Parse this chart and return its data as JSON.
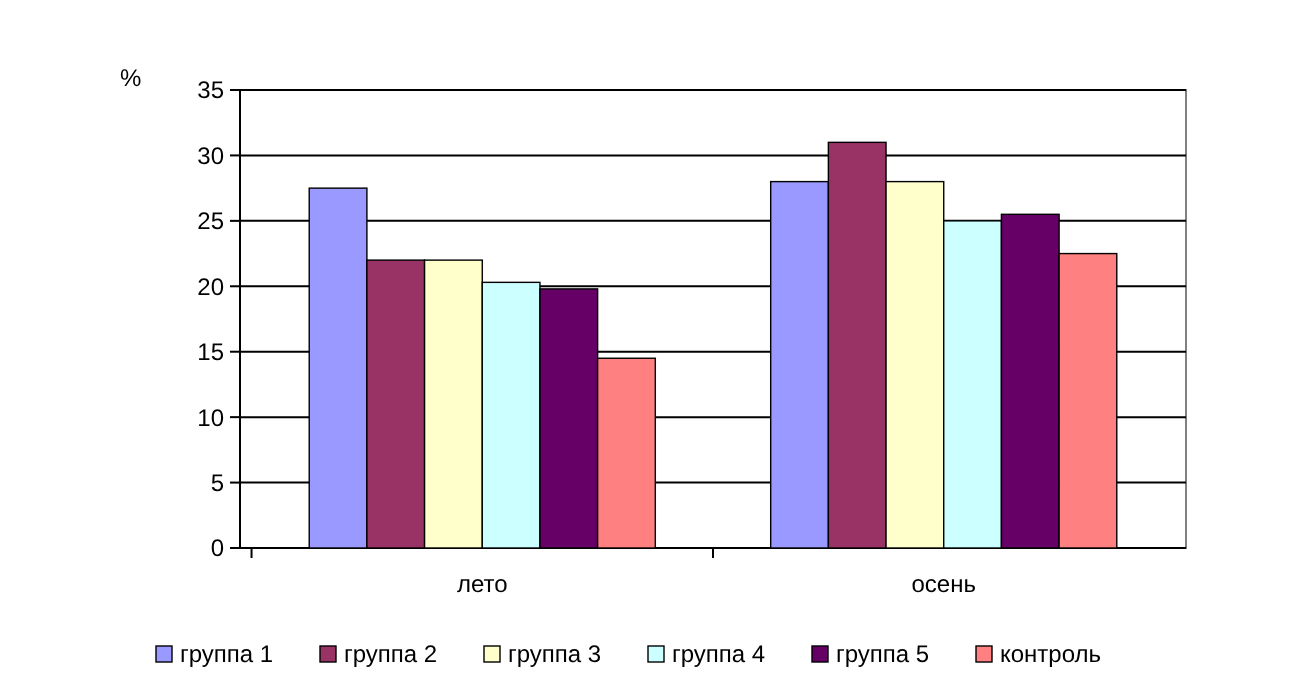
{
  "chart_data": {
    "type": "bar",
    "ylabel": "%",
    "categories": [
      "лето",
      "осень"
    ],
    "series": [
      {
        "name": "группа 1",
        "color": "#9999ff",
        "values": [
          27.5,
          28
        ]
      },
      {
        "name": "группа 2",
        "color": "#993366",
        "values": [
          22,
          31
        ]
      },
      {
        "name": "группа 3",
        "color": "#ffffcc",
        "values": [
          22,
          28
        ]
      },
      {
        "name": "группа 4",
        "color": "#ccffff",
        "values": [
          20.3,
          25
        ]
      },
      {
        "name": "группа 5",
        "color": "#660066",
        "values": [
          19.8,
          25.5
        ]
      },
      {
        "name": "контроль",
        "color": "#ff8080",
        "values": [
          14.5,
          22.5
        ]
      }
    ],
    "ylim": [
      0,
      35
    ],
    "yticks": [
      0,
      5,
      10,
      15,
      20,
      25,
      30,
      35
    ],
    "grid": "y",
    "legend": "bottom"
  }
}
